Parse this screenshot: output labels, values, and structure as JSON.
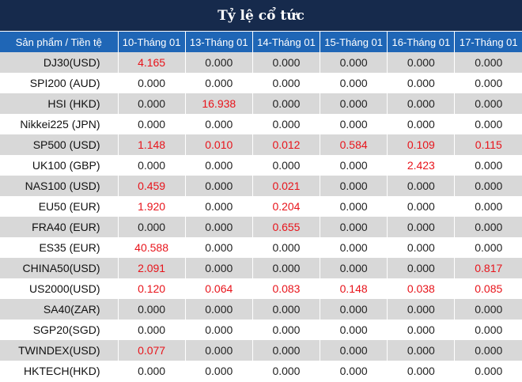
{
  "title": "Tỷ lệ cổ tức",
  "header": {
    "product_label": "Sản phẩm / Tiền tệ",
    "dates": [
      "10-Tháng 01",
      "13-Tháng 01",
      "14-Tháng 01",
      "15-Tháng 01",
      "16-Tháng 01",
      "17-Tháng 01"
    ]
  },
  "colors": {
    "title_bg": "#162a4c",
    "header_bg": "#1f66b6",
    "row_alt": "#d8d8d8",
    "positive": "#e8141b"
  },
  "rows": [
    {
      "product": "DJ30(USD)",
      "values": [
        "4.165",
        "0.000",
        "0.000",
        "0.000",
        "0.000",
        "0.000"
      ]
    },
    {
      "product": "SPI200 (AUD)",
      "values": [
        "0.000",
        "0.000",
        "0.000",
        "0.000",
        "0.000",
        "0.000"
      ]
    },
    {
      "product": "HSI (HKD)",
      "values": [
        "0.000",
        "16.938",
        "0.000",
        "0.000",
        "0.000",
        "0.000"
      ]
    },
    {
      "product": "Nikkei225 (JPN)",
      "values": [
        "0.000",
        "0.000",
        "0.000",
        "0.000",
        "0.000",
        "0.000"
      ]
    },
    {
      "product": "SP500 (USD)",
      "values": [
        "1.148",
        "0.010",
        "0.012",
        "0.584",
        "0.109",
        "0.115"
      ]
    },
    {
      "product": "UK100 (GBP)",
      "values": [
        "0.000",
        "0.000",
        "0.000",
        "0.000",
        "2.423",
        "0.000"
      ]
    },
    {
      "product": "NAS100 (USD)",
      "values": [
        "0.459",
        "0.000",
        "0.021",
        "0.000",
        "0.000",
        "0.000"
      ]
    },
    {
      "product": "EU50 (EUR)",
      "values": [
        "1.920",
        "0.000",
        "0.204",
        "0.000",
        "0.000",
        "0.000"
      ]
    },
    {
      "product": "FRA40 (EUR)",
      "values": [
        "0.000",
        "0.000",
        "0.655",
        "0.000",
        "0.000",
        "0.000"
      ]
    },
    {
      "product": "ES35 (EUR)",
      "values": [
        "40.588",
        "0.000",
        "0.000",
        "0.000",
        "0.000",
        "0.000"
      ]
    },
    {
      "product": "CHINA50(USD)",
      "values": [
        "2.091",
        "0.000",
        "0.000",
        "0.000",
        "0.000",
        "0.817"
      ]
    },
    {
      "product": "US2000(USD)",
      "values": [
        "0.120",
        "0.064",
        "0.083",
        "0.148",
        "0.038",
        "0.085"
      ]
    },
    {
      "product": "SA40(ZAR)",
      "values": [
        "0.000",
        "0.000",
        "0.000",
        "0.000",
        "0.000",
        "0.000"
      ]
    },
    {
      "product": "SGP20(SGD)",
      "values": [
        "0.000",
        "0.000",
        "0.000",
        "0.000",
        "0.000",
        "0.000"
      ]
    },
    {
      "product": "TWINDEX(USD)",
      "values": [
        "0.077",
        "0.000",
        "0.000",
        "0.000",
        "0.000",
        "0.000"
      ]
    },
    {
      "product": "HKTECH(HKD)",
      "values": [
        "0.000",
        "0.000",
        "0.000",
        "0.000",
        "0.000",
        "0.000"
      ]
    }
  ]
}
